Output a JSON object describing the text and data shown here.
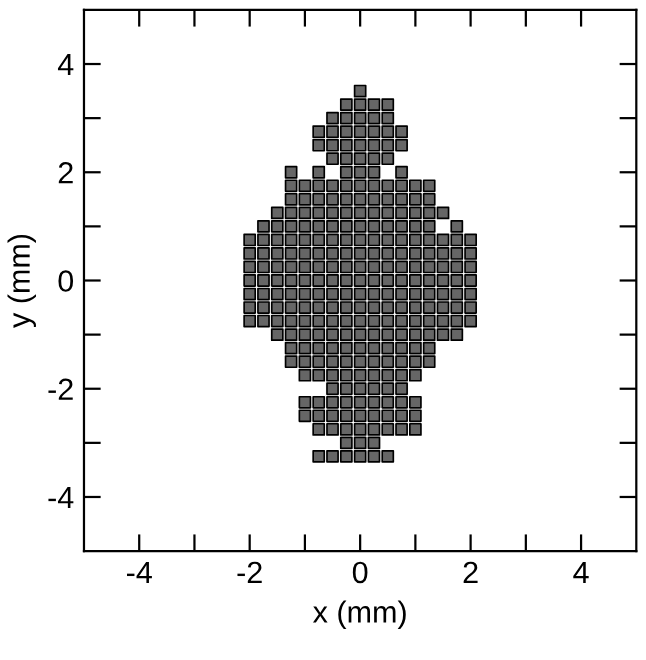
{
  "chart_data": {
    "type": "scatter",
    "xlabel": "x (mm)",
    "ylabel": "y (mm)",
    "xlim": [
      -5,
      5
    ],
    "ylim": [
      -5,
      5
    ],
    "xticks": [
      -4,
      {
        "value": -3,
        "label": null
      },
      -2,
      {
        "value": -1,
        "label": null
      },
      0,
      {
        "value": 1,
        "label": null
      },
      2,
      {
        "value": 3,
        "label": null
      },
      4
    ],
    "yticks": [
      -4,
      {
        "value": -3,
        "label": null
      },
      -2,
      {
        "value": -1,
        "label": null
      },
      0,
      {
        "value": 1,
        "label": null
      },
      2,
      {
        "value": 3,
        "label": null
      },
      4
    ],
    "grid": false,
    "legend": false,
    "marker": "square",
    "series": [
      {
        "color": "#666666",
        "x": [
          0,
          -0.25,
          0,
          0.25,
          0.5,
          -0.5,
          -0.25,
          0,
          0.25,
          0.5,
          -0.75,
          -0.5,
          -0.25,
          0,
          0.25,
          0.5,
          0.75,
          -0.75,
          -0.5,
          -0.25,
          0,
          0.25,
          0.5,
          0.75,
          -0.5,
          -0.25,
          0,
          0.25,
          0.5,
          -1.25,
          -0.75,
          -0.25,
          0,
          0.25,
          0.75,
          -1.25,
          -1,
          -0.75,
          -0.5,
          -0.25,
          0,
          0.25,
          0.5,
          0.75,
          1,
          1.25,
          -1.25,
          -1,
          -0.75,
          -0.5,
          -0.25,
          0,
          0.25,
          0.5,
          0.75,
          1,
          1.25,
          -1.5,
          -1.25,
          -1,
          -0.75,
          -0.5,
          -0.25,
          0,
          0.25,
          0.5,
          0.75,
          1,
          1.25,
          1.5,
          -1.75,
          -1.5,
          -1.25,
          -1,
          -0.75,
          -0.5,
          -0.25,
          0,
          0.25,
          0.5,
          0.75,
          1,
          1.25,
          1.75,
          -2,
          -1.75,
          -1.5,
          -1.25,
          -1,
          -0.75,
          -0.5,
          -0.25,
          0,
          0.25,
          0.5,
          0.75,
          1,
          1.25,
          1.5,
          1.75,
          2,
          -2,
          -1.75,
          -1.5,
          -1.25,
          -1,
          -0.75,
          -0.5,
          -0.25,
          0,
          0.25,
          0.5,
          0.75,
          1,
          1.25,
          1.5,
          1.75,
          2,
          -2,
          -1.75,
          -1.5,
          -1.25,
          -1,
          -0.75,
          -0.5,
          -0.25,
          0,
          0.25,
          0.5,
          0.75,
          1,
          1.25,
          1.5,
          1.75,
          2,
          -2,
          -1.75,
          -1.5,
          -1.25,
          -1,
          -0.75,
          -0.5,
          -0.25,
          0,
          0.25,
          0.5,
          0.75,
          1,
          1.25,
          1.5,
          1.75,
          2,
          -2,
          -1.75,
          -1.5,
          -1.25,
          -1,
          -0.75,
          -0.5,
          -0.25,
          0,
          0.25,
          0.5,
          0.75,
          1,
          1.25,
          1.5,
          1.75,
          2,
          -2,
          -1.75,
          -1.5,
          -1.25,
          -1,
          -0.75,
          -0.5,
          -0.25,
          0,
          0.25,
          0.5,
          0.75,
          1,
          1.25,
          1.5,
          1.75,
          2,
          -2,
          -1.75,
          -1.5,
          -1.25,
          -1,
          -0.75,
          -0.5,
          -0.25,
          0,
          0.25,
          0.5,
          0.75,
          1,
          1.25,
          1.5,
          1.75,
          2,
          -1.5,
          -1.25,
          -1,
          -0.75,
          -0.5,
          -0.25,
          0,
          0.25,
          0.5,
          0.75,
          1,
          1.25,
          1.5,
          1.75,
          -1.25,
          -1,
          -0.75,
          -0.5,
          -0.25,
          0,
          0.25,
          0.5,
          0.75,
          1,
          1.25,
          -1.25,
          -1,
          -0.75,
          -0.5,
          -0.25,
          0,
          0.25,
          0.5,
          0.75,
          1,
          1.25,
          -1,
          -0.75,
          -0.5,
          -0.25,
          0,
          0.25,
          0.5,
          0.75,
          1,
          -0.5,
          -0.25,
          0,
          0.25,
          0.5,
          0.75,
          -1,
          -0.75,
          -0.5,
          -0.25,
          0,
          0.25,
          0.5,
          0.75,
          1,
          -1,
          -0.75,
          -0.5,
          -0.25,
          0,
          0.25,
          0.5,
          0.75,
          1,
          -0.75,
          -0.5,
          -0.25,
          0,
          0.25,
          0.5,
          0.75,
          1,
          -0.25,
          0,
          0.25,
          -0.75,
          -0.5,
          -0.25,
          0,
          0.25,
          0.5
        ],
        "values": [
          3.5,
          3.25,
          3.25,
          3.25,
          3.25,
          3,
          3,
          3,
          3,
          3,
          2.75,
          2.75,
          2.75,
          2.75,
          2.75,
          2.75,
          2.75,
          2.5,
          2.5,
          2.5,
          2.5,
          2.5,
          2.5,
          2.5,
          2.25,
          2.25,
          2.25,
          2.25,
          2.25,
          2,
          2,
          2,
          2,
          2,
          2,
          1.75,
          1.75,
          1.75,
          1.75,
          1.75,
          1.75,
          1.75,
          1.75,
          1.75,
          1.75,
          1.75,
          1.5,
          1.5,
          1.5,
          1.5,
          1.5,
          1.5,
          1.5,
          1.5,
          1.5,
          1.5,
          1.5,
          1.25,
          1.25,
          1.25,
          1.25,
          1.25,
          1.25,
          1.25,
          1.25,
          1.25,
          1.25,
          1.25,
          1.25,
          1.25,
          1,
          1,
          1,
          1,
          1,
          1,
          1,
          1,
          1,
          1,
          1,
          1,
          1,
          1,
          0.75,
          0.75,
          0.75,
          0.75,
          0.75,
          0.75,
          0.75,
          0.75,
          0.75,
          0.75,
          0.75,
          0.75,
          0.75,
          0.75,
          0.75,
          0.75,
          0.75,
          0.5,
          0.5,
          0.5,
          0.5,
          0.5,
          0.5,
          0.5,
          0.5,
          0.5,
          0.5,
          0.5,
          0.5,
          0.5,
          0.5,
          0.5,
          0.5,
          0.5,
          0.25,
          0.25,
          0.25,
          0.25,
          0.25,
          0.25,
          0.25,
          0.25,
          0.25,
          0.25,
          0.25,
          0.25,
          0.25,
          0.25,
          0.25,
          0.25,
          0.25,
          0,
          0,
          0,
          0,
          0,
          0,
          0,
          0,
          0,
          0,
          0,
          0,
          0,
          0,
          0,
          0,
          0,
          -0.25,
          -0.25,
          -0.25,
          -0.25,
          -0.25,
          -0.25,
          -0.25,
          -0.25,
          -0.25,
          -0.25,
          -0.25,
          -0.25,
          -0.25,
          -0.25,
          -0.25,
          -0.25,
          -0.25,
          -0.5,
          -0.5,
          -0.5,
          -0.5,
          -0.5,
          -0.5,
          -0.5,
          -0.5,
          -0.5,
          -0.5,
          -0.5,
          -0.5,
          -0.5,
          -0.5,
          -0.5,
          -0.5,
          -0.5,
          -0.75,
          -0.75,
          -0.75,
          -0.75,
          -0.75,
          -0.75,
          -0.75,
          -0.75,
          -0.75,
          -0.75,
          -0.75,
          -0.75,
          -0.75,
          -0.75,
          -0.75,
          -0.75,
          -0.75,
          -1,
          -1,
          -1,
          -1,
          -1,
          -1,
          -1,
          -1,
          -1,
          -1,
          -1,
          -1,
          -1,
          -1,
          -1.25,
          -1.25,
          -1.25,
          -1.25,
          -1.25,
          -1.25,
          -1.25,
          -1.25,
          -1.25,
          -1.25,
          -1.25,
          -1.5,
          -1.5,
          -1.5,
          -1.5,
          -1.5,
          -1.5,
          -1.5,
          -1.5,
          -1.5,
          -1.5,
          -1.5,
          -1.75,
          -1.75,
          -1.75,
          -1.75,
          -1.75,
          -1.75,
          -1.75,
          -1.75,
          -1.75,
          -2,
          -2,
          -2,
          -2,
          -2,
          -2,
          -2.25,
          -2.25,
          -2.25,
          -2.25,
          -2.25,
          -2.25,
          -2.25,
          -2.25,
          -2.25,
          -2.5,
          -2.5,
          -2.5,
          -2.5,
          -2.5,
          -2.5,
          -2.5,
          -2.5,
          -2.5,
          -2.75,
          -2.75,
          -2.75,
          -2.75,
          -2.75,
          -2.75,
          -2.75,
          -2.75,
          -3,
          -3,
          -3,
          -3.25,
          -3.25,
          -3.25,
          -3.25,
          -3.25,
          -3.25
        ]
      }
    ]
  }
}
